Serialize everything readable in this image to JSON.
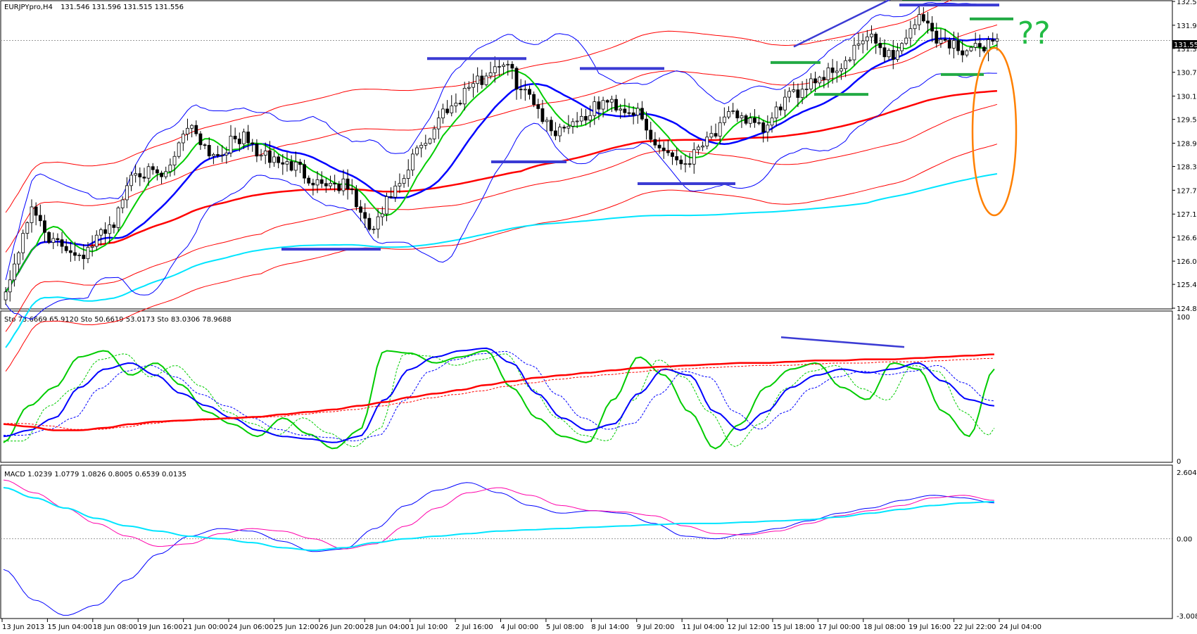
{
  "window": {
    "title": "EURJPYpro,H4",
    "ohlc": "131.546 131.596 131.515 131.556"
  },
  "colors": {
    "background": "#ffffff",
    "frame": "#000000",
    "bollinger": "#0000ff",
    "envelope": "#ff0000",
    "fast_ma": "#00cc00",
    "slow_ma": "#0000ff",
    "long_ma": "#ff0000",
    "ema_cyan": "#00e5ff",
    "level_blue": "#3b3bd4",
    "level_green": "#22aa44",
    "annotation_orange": "#ff8000",
    "annotation_green": "#22bb44",
    "macd_main": "#0000ff",
    "macd_signal": "#ff00aa",
    "macd_slow": "#00e5ff"
  },
  "annotations": {
    "question": "??"
  },
  "chart_data": [
    {
      "type": "candlestick",
      "pane": "price",
      "symbol": "EURJPYpro",
      "timeframe": "H4",
      "current_price": "131.556",
      "ylim": [
        124.815,
        132.54
      ],
      "y_ticks": [
        "132.540",
        "131.940",
        "131.355",
        "130.755",
        "130.155",
        "129.570",
        "128.970",
        "128.385",
        "127.785",
        "127.185",
        "126.600",
        "126.000",
        "125.415",
        "124.815"
      ],
      "y_tick_values": [
        132.54,
        131.94,
        131.355,
        130.755,
        130.155,
        129.57,
        128.97,
        128.385,
        127.785,
        127.185,
        126.6,
        126.0,
        125.415,
        124.815
      ],
      "x_ticks": [
        "13 Jun 2013",
        "15 Jun 04:00",
        "18 Jun 08:00",
        "19 Jun 16:00",
        "21 Jun 00:00",
        "24 Jun 06:00",
        "25 Jun 12:00",
        "26 Jun 20:00",
        "28 Jun 04:00",
        "1 Jul 10:00",
        "2 Jul 16:00",
        "4 Jul 00:00",
        "5 Jul 08:00",
        "8 Jul 14:00",
        "9 Jul 20:00",
        "11 Jul 04:00",
        "12 Jul 12:00",
        "15 Jul 18:00",
        "17 Jul 00:00",
        "18 Jul 08:00",
        "19 Jul 16:00",
        "22 Jul 22:00",
        "24 Jul 04:00"
      ],
      "close_anchors": [
        125.4,
        127.2,
        126.4,
        126.2,
        126.9,
        128.3,
        128.1,
        129.4,
        128.7,
        129.1,
        128.6,
        128.4,
        128.0,
        127.9,
        126.8,
        127.8,
        129.0,
        129.9,
        130.5,
        131.0,
        130.2,
        129.3,
        129.6,
        130.0,
        129.8,
        128.9,
        128.5,
        129.2,
        129.7,
        129.3,
        130.1,
        130.6,
        130.9,
        131.6,
        131.2,
        132.1,
        131.5,
        131.3,
        131.6
      ],
      "overlays": [
        {
          "name": "Bollinger",
          "color": "#0000ff"
        },
        {
          "name": "Envelope",
          "color": "#ff0000"
        }
      ]
    },
    {
      "type": "line",
      "pane": "stochastic",
      "header": "Sto 73.6669 65.9120  Sto 50.6619 53.0173  Sto 83.0306 78.9688",
      "ylim": [
        0,
        100
      ],
      "y_ticks": [
        "100",
        "0"
      ],
      "y_tick_values": [
        100,
        0
      ],
      "series": [
        {
          "color": "#00cc00",
          "values": [
            15,
            45,
            60,
            85,
            90,
            70,
            80,
            62,
            40,
            30,
            20,
            35,
            22,
            10,
            25,
            90,
            88,
            80,
            85,
            90,
            60,
            35,
            20,
            15,
            50,
            85,
            70,
            40,
            10,
            30,
            60,
            75,
            80,
            60,
            50,
            80,
            75,
            40,
            20,
            75
          ]
        },
        {
          "color": "#0000ff",
          "values": [
            20,
            25,
            35,
            60,
            75,
            80,
            70,
            55,
            45,
            35,
            25,
            20,
            18,
            15,
            20,
            50,
            75,
            85,
            90,
            92,
            80,
            55,
            35,
            25,
            30,
            55,
            75,
            70,
            40,
            25,
            40,
            60,
            70,
            75,
            72,
            75,
            80,
            65,
            50,
            45
          ]
        },
        {
          "color": "#ff0000",
          "values": [
            30,
            28,
            25,
            25,
            27,
            30,
            32,
            33,
            34,
            35,
            36,
            38,
            40,
            42,
            45,
            48,
            52,
            55,
            58,
            62,
            65,
            68,
            70,
            72,
            74,
            76,
            77,
            78,
            79,
            80,
            80,
            81,
            82,
            82,
            83,
            83,
            84,
            85,
            86,
            87
          ]
        }
      ]
    },
    {
      "type": "line",
      "pane": "macd",
      "header": "MACD 1.0239 1.0779 1.0826 0.8005 0.6539 0.0135",
      "ylim": [
        -3.0089,
        2.6047
      ],
      "y_ticks": [
        "2.6047",
        "0.00",
        "-3.0089"
      ],
      "y_tick_values": [
        2.6047,
        0.0,
        -3.0089
      ],
      "series": [
        {
          "color": "#0000ff",
          "values": [
            -1.2,
            -2.4,
            -3.0,
            -2.6,
            -1.6,
            -0.6,
            0.1,
            0.4,
            0.3,
            -0.1,
            -0.5,
            -0.4,
            0.4,
            1.3,
            1.9,
            2.2,
            1.8,
            1.3,
            1.0,
            1.1,
            1.0,
            0.6,
            0.1,
            0.0,
            0.2,
            0.4,
            0.7,
            1.0,
            1.2,
            1.5,
            1.7,
            1.6,
            1.4
          ]
        },
        {
          "color": "#ff00aa",
          "values": [
            2.3,
            1.8,
            1.2,
            0.6,
            0.1,
            -0.3,
            -0.2,
            0.2,
            0.4,
            0.3,
            0.0,
            -0.4,
            -0.2,
            0.5,
            1.2,
            1.8,
            2.0,
            1.7,
            1.3,
            1.1,
            1.05,
            0.9,
            0.5,
            0.2,
            0.15,
            0.3,
            0.6,
            0.9,
            1.1,
            1.3,
            1.6,
            1.7,
            1.5
          ]
        },
        {
          "color": "#00e5ff",
          "values": [
            2.0,
            1.6,
            1.2,
            0.8,
            0.5,
            0.3,
            0.1,
            0.0,
            -0.15,
            -0.35,
            -0.45,
            -0.35,
            -0.15,
            0.0,
            0.1,
            0.2,
            0.3,
            0.35,
            0.4,
            0.45,
            0.5,
            0.55,
            0.6,
            0.6,
            0.65,
            0.7,
            0.75,
            0.85,
            1.0,
            1.15,
            1.3,
            1.4,
            1.45
          ]
        }
      ]
    }
  ]
}
